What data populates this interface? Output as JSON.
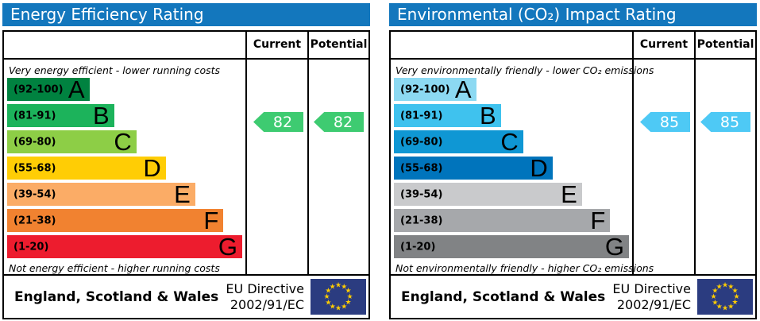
{
  "theme": {
    "header_blue": "#1377bd",
    "eu_flag_blue": "#2b3c80",
    "eu_flag_star": "#ffcc00"
  },
  "chart_data": [
    {
      "type": "bar",
      "title": "Energy Efficiency Rating",
      "categories": [
        "A",
        "B",
        "C",
        "D",
        "E",
        "F",
        "G"
      ],
      "band_ranges": [
        [
          92,
          100
        ],
        [
          81,
          91
        ],
        [
          69,
          80
        ],
        [
          55,
          68
        ],
        [
          39,
          54
        ],
        [
          21,
          38
        ],
        [
          1,
          20
        ]
      ],
      "band_colors": [
        "#008240",
        "#1cb35b",
        "#8dce46",
        "#ffcd05",
        "#fbac66",
        "#f18230",
        "#ed1c2e"
      ],
      "band_length_pct": [
        35,
        45.5,
        55,
        67.5,
        80,
        92,
        100
      ],
      "current": 82,
      "potential": 82,
      "current_band": "B",
      "potential_band": "B",
      "top_note": "Very energy efficient - lower running costs",
      "bottom_note": "Not energy efficient - higher running costs",
      "region": "England, Scotland & Wales",
      "directive": "EU Directive 2002/91/EC"
    },
    {
      "type": "bar",
      "title": "Environmental (CO₂) Impact Rating",
      "categories": [
        "A",
        "B",
        "C",
        "D",
        "E",
        "F",
        "G"
      ],
      "band_ranges": [
        [
          92,
          100
        ],
        [
          81,
          91
        ],
        [
          69,
          80
        ],
        [
          55,
          68
        ],
        [
          39,
          54
        ],
        [
          21,
          38
        ],
        [
          1,
          20
        ]
      ],
      "band_colors": [
        "#8cd9f2",
        "#3fc2ee",
        "#0f97d4",
        "#0074bc",
        "#c9cacc",
        "#a6a8ab",
        "#818385"
      ],
      "band_length_pct": [
        35,
        45.5,
        55,
        67.5,
        80,
        92,
        100
      ],
      "current": 85,
      "potential": 85,
      "current_band": "B",
      "potential_band": "B",
      "top_note": "Very environmentally friendly - lower CO₂ emissions",
      "bottom_note": "Not environmentally friendly - higher CO₂ emissions",
      "region": "England, Scotland & Wales",
      "directive": "EU Directive 2002/91/EC"
    }
  ],
  "panels": [
    {
      "title": "Energy Efficiency Rating",
      "col_current": "Current",
      "col_potential": "Potential",
      "top_caption": "Very energy efficient - lower running costs",
      "bottom_caption": "Not energy efficient - higher running costs",
      "current_value": "82",
      "potential_value": "82",
      "arrow_color": "#3ecb71",
      "bands": [
        {
          "letter": "A",
          "range": "(92-100)",
          "color": "#008240",
          "width_pct": 35
        },
        {
          "letter": "B",
          "range": "(81-91)",
          "color": "#1cb35b",
          "width_pct": 45.5
        },
        {
          "letter": "C",
          "range": "(69-80)",
          "color": "#8dce46",
          "width_pct": 55
        },
        {
          "letter": "D",
          "range": "(55-68)",
          "color": "#ffcd05",
          "width_pct": 67.5
        },
        {
          "letter": "E",
          "range": "(39-54)",
          "color": "#fbac66",
          "width_pct": 80
        },
        {
          "letter": "F",
          "range": "(21-38)",
          "color": "#f18230",
          "width_pct": 92
        },
        {
          "letter": "G",
          "range": "(1-20)",
          "color": "#ed1c2e",
          "width_pct": 100
        }
      ],
      "footer": {
        "region": "England, Scotland & Wales",
        "directive_line1": "EU Directive",
        "directive_line2": "2002/91/EC"
      }
    },
    {
      "title": "Environmental (CO₂) Impact Rating",
      "col_current": "Current",
      "col_potential": "Potential",
      "top_caption": "Very environmentally friendly - lower CO₂ emissions",
      "bottom_caption": "Not environmentally friendly - higher CO₂ emissions",
      "current_value": "85",
      "potential_value": "85",
      "arrow_color": "#4ec9f5",
      "bands": [
        {
          "letter": "A",
          "range": "(92-100)",
          "color": "#8cd9f2",
          "width_pct": 35
        },
        {
          "letter": "B",
          "range": "(81-91)",
          "color": "#3fc2ee",
          "width_pct": 45.5
        },
        {
          "letter": "C",
          "range": "(69-80)",
          "color": "#0f97d4",
          "width_pct": 55
        },
        {
          "letter": "D",
          "range": "(55-68)",
          "color": "#0074bc",
          "width_pct": 67.5
        },
        {
          "letter": "E",
          "range": "(39-54)",
          "color": "#c9cacc",
          "width_pct": 80
        },
        {
          "letter": "F",
          "range": "(21-38)",
          "color": "#a6a8ab",
          "width_pct": 92
        },
        {
          "letter": "G",
          "range": "(1-20)",
          "color": "#818385",
          "width_pct": 100
        }
      ],
      "footer": {
        "region": "England, Scotland & Wales",
        "directive_line1": "EU Directive",
        "directive_line2": "2002/91/EC"
      }
    }
  ]
}
